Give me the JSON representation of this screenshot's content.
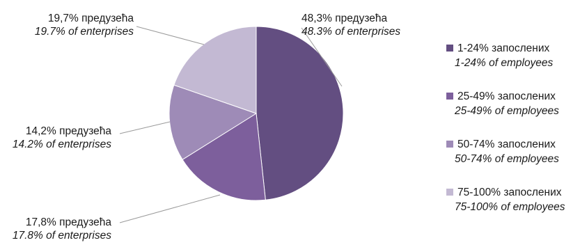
{
  "chart_data": {
    "type": "pie",
    "categories": [
      "1-24% запослених",
      "25-49% запослених",
      "50-74% запослених",
      "75-100% запослених"
    ],
    "categories_en": [
      "1-24% of employees",
      "25-49% of employees",
      "50-74% of employees",
      "75-100% of employees"
    ],
    "values": [
      48.3,
      17.8,
      14.2,
      19.7
    ],
    "data_labels": [
      "48,3% предузећа",
      "17,8% предузећа",
      "14,2% предузећа",
      "19,7% предузећа"
    ],
    "data_labels_en": [
      "48.3% of enterprises",
      "17.8% of enterprises",
      "14.2% of enterprises",
      "19.7% of enterprises"
    ],
    "colors": [
      "#634e81",
      "#7d5f9c",
      "#9e8bb7",
      "#c3b9d3"
    ],
    "start_angle_deg": 0,
    "direction": "clockwise",
    "legend_position": "right"
  }
}
